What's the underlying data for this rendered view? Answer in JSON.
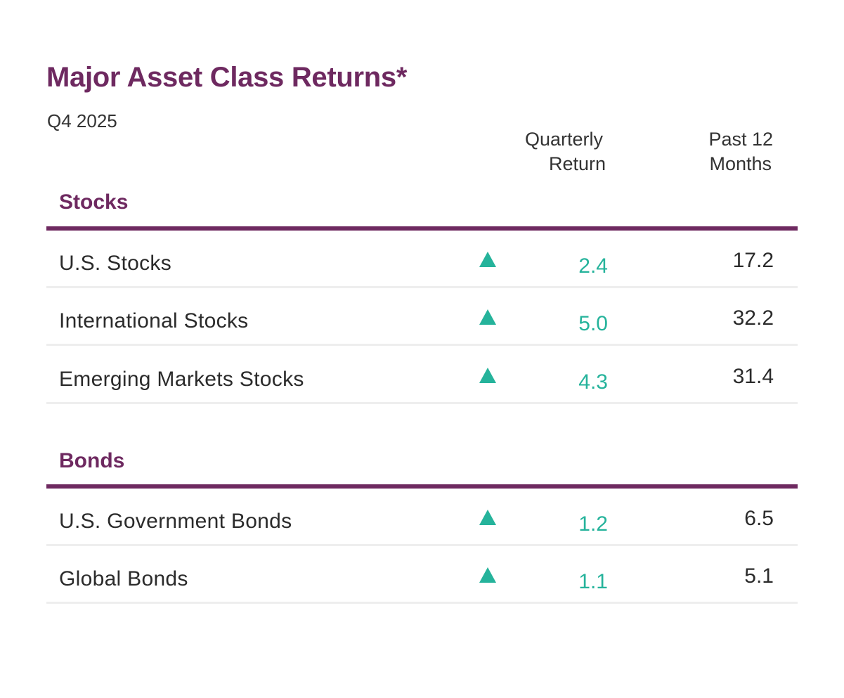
{
  "chart_data": {
    "type": "table",
    "title": "Major Asset Class Returns*",
    "subtitle": "Q4 2025",
    "columns": [
      {
        "key": "quarterly",
        "label_lines": [
          "Quarterly",
          "Return"
        ]
      },
      {
        "key": "past12",
        "label_lines": [
          "Past 12",
          "Months"
        ]
      }
    ],
    "sections": [
      {
        "name": "Stocks",
        "rows": [
          {
            "label": "U.S. Stocks",
            "quarterly": "2.4",
            "past12": "17.2",
            "direction": "up"
          },
          {
            "label": "International Stocks",
            "quarterly": "5.0",
            "past12": "32.2",
            "direction": "up"
          },
          {
            "label": "Emerging Markets Stocks",
            "quarterly": "4.3",
            "past12": "31.4",
            "direction": "up"
          }
        ]
      },
      {
        "name": "Bonds",
        "rows": [
          {
            "label": "U.S. Government Bonds",
            "quarterly": "1.2",
            "past12": "6.5",
            "direction": "up"
          },
          {
            "label": "Global Bonds",
            "quarterly": "1.1",
            "past12": "5.1",
            "direction": "up"
          }
        ]
      }
    ],
    "colors": {
      "title": "#6e2960",
      "section_rule": "#6e2960",
      "positive": "#25b39b",
      "text": "#2b2b2b",
      "row_divider": "#eeeeee"
    },
    "icons": {
      "direction_up": "triangle-up-icon"
    }
  }
}
